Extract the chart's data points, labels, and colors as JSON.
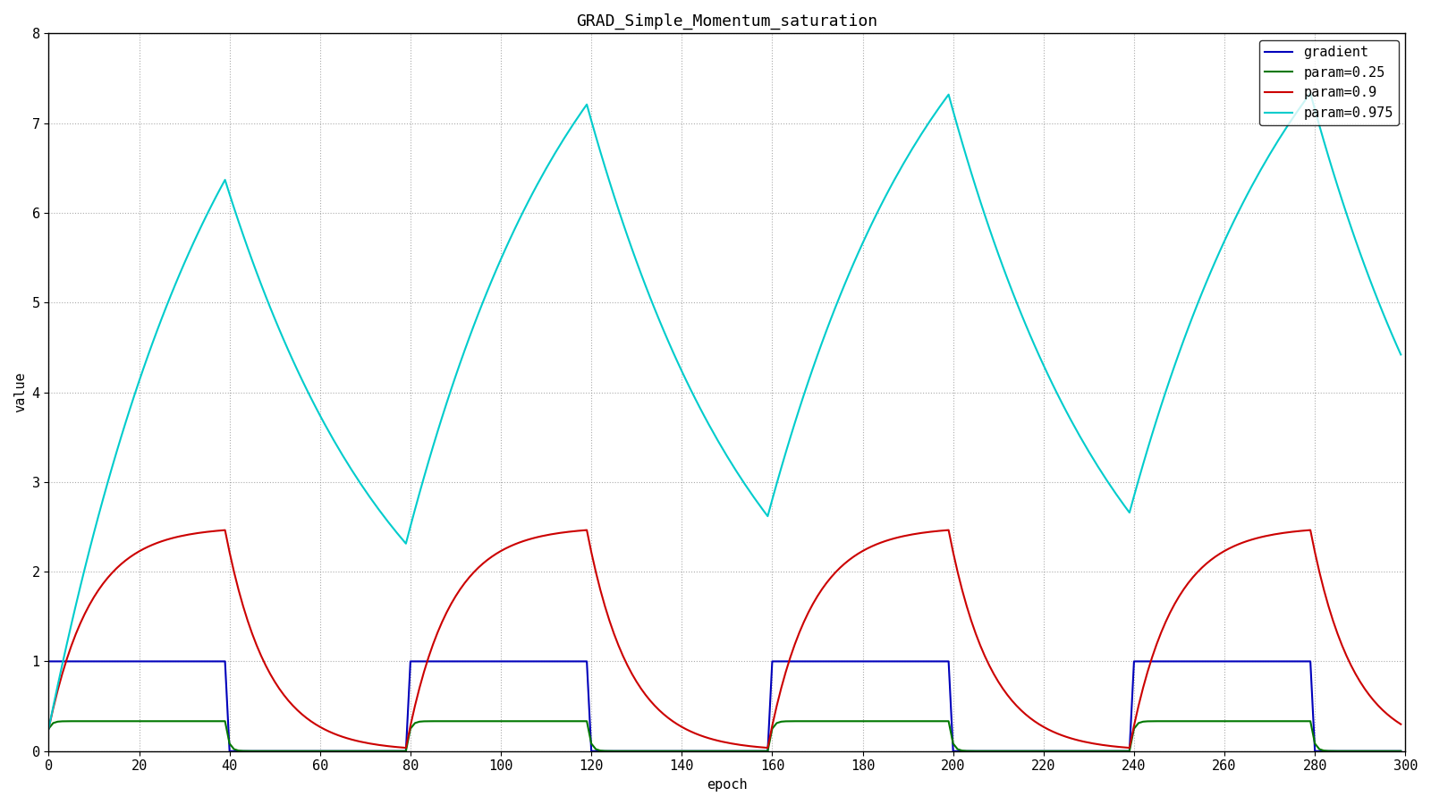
{
  "title": "GRAD_Simple_Momentum_saturation",
  "xlabel": "epoch",
  "ylabel": "value",
  "xlim": [
    0,
    300
  ],
  "ylim": [
    0,
    8
  ],
  "yticks": [
    0,
    1,
    2,
    3,
    4,
    5,
    6,
    7,
    8
  ],
  "xticks": [
    0,
    20,
    40,
    60,
    80,
    100,
    120,
    140,
    160,
    180,
    200,
    220,
    240,
    260,
    280,
    300
  ],
  "n_epochs": 300,
  "on_period": 40,
  "off_period": 40,
  "gradient_value": 1.0,
  "params": [
    0.25,
    0.9,
    0.975
  ],
  "colors": {
    "gradient": "#0000bb",
    "param_0.25": "#007700",
    "param_0.9": "#cc0000",
    "param_0.975": "#00cccc"
  },
  "legend_labels": [
    "gradient",
    "param=0.25",
    "param=0.9",
    "param=0.975"
  ],
  "background_color": "#ffffff",
  "grid_color": "#888888",
  "title_fontsize": 13,
  "axis_fontsize": 11,
  "legend_fontsize": 11
}
